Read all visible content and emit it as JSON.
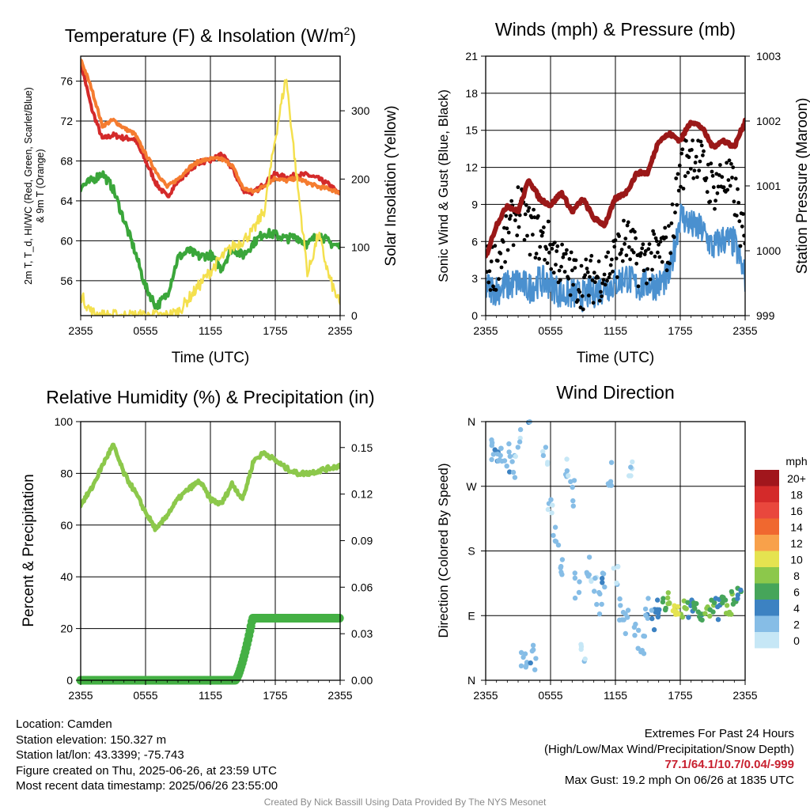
{
  "colors": {
    "red": "#d42a2a",
    "orange": "#f57c30",
    "green": "#3aa63a",
    "yellow": "#f4e04e",
    "maroon": "#9a1818",
    "blue": "#4a90cf",
    "black": "#000000",
    "lightgreen": "#8cc84b",
    "precipgreen": "#44b044",
    "extremes": "#c8202f"
  },
  "chart_data": [
    {
      "type": "line",
      "title": "Temperature (F) & Insolation (W/m²)",
      "xlabel": "Time (UTC)",
      "ylabel": "2m T, T_d, HI/WC (Red, Green, Scarlet/Blue) & 9m T (Orange)",
      "ylabel_right": "Solar Insolation (Yellow)",
      "x_ticks": [
        "2355",
        "0555",
        "1155",
        "1755",
        "2355"
      ],
      "y_ticks": [
        "56",
        "60",
        "64",
        "68",
        "72",
        "76"
      ],
      "y_right_ticks": [
        "0",
        "100",
        "200",
        "300"
      ],
      "ylim": [
        52.5,
        78.5
      ],
      "ylim_right": [
        0,
        380
      ],
      "x_hours": [
        0,
        1,
        2,
        3,
        4,
        5,
        6,
        7,
        8,
        9,
        10,
        11,
        12,
        13,
        14,
        15,
        16,
        17,
        18,
        19,
        20,
        21,
        22,
        23,
        24
      ],
      "series": [
        {
          "name": "2m T",
          "color": "red",
          "axis": "left",
          "width": 4,
          "values": [
            77.9,
            73.3,
            70.2,
            70.6,
            70.3,
            70.2,
            68.0,
            65.7,
            64.4,
            66.0,
            67.0,
            67.9,
            68.0,
            68.7,
            67.3,
            65.1,
            64.8,
            65.7,
            66.7,
            66.3,
            66.6,
            66.6,
            66.2,
            65.6,
            64.6
          ]
        },
        {
          "name": "9m T",
          "color": "orange",
          "axis": "left",
          "width": 4,
          "values": [
            78.2,
            75.3,
            71.5,
            72.1,
            71.3,
            70.7,
            68.7,
            66.9,
            65.4,
            66.2,
            67.3,
            68.0,
            68.2,
            68.2,
            67.6,
            65.3,
            64.9,
            65.5,
            66.3,
            66.0,
            66.3,
            65.8,
            65.4,
            65.2,
            64.8
          ]
        },
        {
          "name": "T_d",
          "color": "green",
          "axis": "left",
          "width": 4,
          "values": [
            65.4,
            66.0,
            66.8,
            65.2,
            62.1,
            59.0,
            55.4,
            53.4,
            54.6,
            58.3,
            59.0,
            58.4,
            58.6,
            57.2,
            59.3,
            58.5,
            59.8,
            60.8,
            60.6,
            60.2,
            60.4,
            59.6,
            60.7,
            59.8,
            59.4
          ]
        },
        {
          "name": "Solar Insolation",
          "color": "yellow",
          "axis": "right",
          "width": 2.5,
          "values": [
            30,
            5,
            0,
            0,
            0,
            0,
            0,
            0,
            0,
            5,
            25,
            45,
            65,
            85,
            100,
            110,
            125,
            155,
            260,
            350,
            200,
            60,
            120,
            55,
            15
          ]
        }
      ]
    },
    {
      "type": "scatter",
      "title": "Winds (mph) & Pressure (mb)",
      "xlabel": "Time (UTC)",
      "ylabel": "Sonic Wind & Gust (Blue, Black)",
      "ylabel_right": "Station Pressure (Maroon)",
      "x_ticks": [
        "2355",
        "0555",
        "1155",
        "1755",
        "2355"
      ],
      "y_ticks": [
        "0",
        "3",
        "6",
        "9",
        "12",
        "15",
        "18",
        "21"
      ],
      "y_right_ticks": [
        "999",
        "1000",
        "1001",
        "1002",
        "1003"
      ],
      "ylim": [
        0,
        21
      ],
      "ylim_right": [
        999,
        1003
      ],
      "x_hours": [
        0,
        1,
        2,
        3,
        4,
        5,
        6,
        7,
        8,
        9,
        10,
        11,
        12,
        13,
        14,
        15,
        16,
        17,
        18,
        19,
        20,
        21,
        22,
        23,
        24
      ],
      "series": [
        {
          "name": "Sonic Wind",
          "color": "blue",
          "axis": "left",
          "kind": "line",
          "values": [
            2.3,
            2.1,
            2.4,
            2.7,
            2.2,
            2.8,
            2.6,
            1.7,
            1.8,
            1.6,
            1.9,
            2.3,
            2.6,
            3.2,
            2.3,
            2.6,
            2.5,
            3.2,
            8.2,
            7.3,
            6.9,
            5.5,
            6.2,
            5.9,
            3.1
          ]
        },
        {
          "name": "Gust",
          "color": "black",
          "axis": "left",
          "kind": "points",
          "values": [
            3.6,
            4.2,
            6.2,
            8.8,
            7.0,
            6.3,
            5.5,
            4.1,
            3.2,
            2.6,
            3.0,
            3.5,
            4.8,
            6.2,
            4.4,
            4.6,
            5.0,
            5.6,
            11.8,
            13.5,
            12.1,
            10.4,
            11.1,
            10.1,
            5.3
          ]
        },
        {
          "name": "Station Pressure",
          "color": "maroon",
          "axis": "right",
          "kind": "line",
          "values": [
            999.9,
            1000.4,
            1000.7,
            1000.6,
            1001.1,
            1000.8,
            1000.7,
            1000.9,
            1000.6,
            1000.8,
            1000.5,
            1000.4,
            1000.8,
            1000.9,
            1001.2,
            1001.2,
            1001.7,
            1001.8,
            1001.7,
            1002.0,
            1001.9,
            1001.6,
            1001.7,
            1001.6,
            1002.0
          ]
        }
      ]
    },
    {
      "type": "line",
      "title": "Relative Humidity (%) & Precipitation (in)",
      "ylabel": "Percent & Precipitation",
      "x_ticks": [
        "2355",
        "0555",
        "1155",
        "1755",
        "2355"
      ],
      "y_ticks": [
        "0",
        "20",
        "40",
        "60",
        "80",
        "100"
      ],
      "y_right_ticks": [
        "0.00",
        "0.03",
        "0.06",
        "0.09",
        "0.12",
        "0.15"
      ],
      "ylim": [
        0,
        100
      ],
      "ylim_right": [
        0,
        0.1667
      ],
      "x_hours": [
        0,
        1,
        2,
        3,
        4,
        5,
        6,
        7,
        8,
        9,
        10,
        11,
        12,
        13,
        14,
        15,
        16,
        17,
        18,
        19,
        20,
        21,
        22,
        23,
        24
      ],
      "series": [
        {
          "name": "Relative Humidity",
          "color": "lightgreen",
          "axis": "left",
          "values": [
            68,
            74,
            83,
            91,
            80,
            73,
            65,
            58,
            64,
            70,
            74,
            77,
            70,
            68,
            76,
            70,
            85,
            88,
            85,
            82,
            80,
            80,
            81,
            82,
            83
          ]
        },
        {
          "name": "Precipitation",
          "color": "precipgreen",
          "axis": "right",
          "values": [
            0,
            0,
            0,
            0,
            0,
            0,
            0,
            0,
            0,
            0,
            0,
            0,
            0,
            0,
            0,
            0.005,
            0.04,
            0.04,
            0.04,
            0.04,
            0.04,
            0.04,
            0.04,
            0.04,
            0.04
          ]
        }
      ]
    },
    {
      "type": "scatter",
      "title": "Wind Direction",
      "ylabel": "Direction (Colored By Speed)",
      "x_ticks": [
        "2355",
        "0555",
        "1155",
        "1755",
        "2355"
      ],
      "y_ticks": [
        "N",
        "E",
        "S",
        "W",
        "N"
      ],
      "ylim": [
        0,
        360
      ],
      "legend": {
        "title": "mph",
        "labels": [
          "20+",
          "18",
          "16",
          "14",
          "12",
          "10",
          "8",
          "6",
          "4",
          "2",
          "0"
        ],
        "colors": [
          "#a1161c",
          "#d42a2a",
          "#e9473d",
          "#f0682f",
          "#f8a14a",
          "#e5e350",
          "#8cc84b",
          "#46a55a",
          "#3c82c2",
          "#86bde6",
          "#c6e7f6"
        ]
      },
      "points": [
        {
          "h": 0.5,
          "dir": 322,
          "spd": 2
        },
        {
          "h": 1.0,
          "dir": 318,
          "spd": 3
        },
        {
          "h": 1.5,
          "dir": 305,
          "spd": 2
        },
        {
          "h": 2.0,
          "dir": 310,
          "spd": 3
        },
        {
          "h": 2.5,
          "dir": 298,
          "spd": 2
        },
        {
          "h": 3.0,
          "dir": 330,
          "spd": 1
        },
        {
          "h": 3.5,
          "dir": 25,
          "spd": 2
        },
        {
          "h": 4.0,
          "dir": 18,
          "spd": 3
        },
        {
          "h": 4.5,
          "dir": 30,
          "spd": 2
        },
        {
          "h": 5.5,
          "dir": 305,
          "spd": 1
        },
        {
          "h": 6.0,
          "dir": 250,
          "spd": 1
        },
        {
          "h": 6.5,
          "dir": 200,
          "spd": 2
        },
        {
          "h": 7.0,
          "dir": 150,
          "spd": 2
        },
        {
          "h": 7.5,
          "dir": 300,
          "spd": 1
        },
        {
          "h": 8.0,
          "dir": 260,
          "spd": 2
        },
        {
          "h": 8.5,
          "dir": 130,
          "spd": 2
        },
        {
          "h": 9.0,
          "dir": 30,
          "spd": 1
        },
        {
          "h": 9.5,
          "dir": 160,
          "spd": 2
        },
        {
          "h": 10.0,
          "dir": 135,
          "spd": 1
        },
        {
          "h": 10.5,
          "dir": 110,
          "spd": 2
        },
        {
          "h": 11.0,
          "dir": 130,
          "spd": 3
        },
        {
          "h": 11.5,
          "dir": 290,
          "spd": 2
        },
        {
          "h": 12.0,
          "dir": 140,
          "spd": 1
        },
        {
          "h": 12.5,
          "dir": 95,
          "spd": 2
        },
        {
          "h": 13.0,
          "dir": 80,
          "spd": 2
        },
        {
          "h": 13.5,
          "dir": 300,
          "spd": 1
        },
        {
          "h": 14.0,
          "dir": 60,
          "spd": 2
        },
        {
          "h": 14.5,
          "dir": 45,
          "spd": 2
        },
        {
          "h": 15.0,
          "dir": 100,
          "spd": 3
        },
        {
          "h": 15.5,
          "dir": 85,
          "spd": 3
        },
        {
          "h": 16.0,
          "dir": 95,
          "spd": 4
        },
        {
          "h": 16.5,
          "dir": 105,
          "spd": 6
        },
        {
          "h": 17.0,
          "dir": 115,
          "spd": 8
        },
        {
          "h": 17.5,
          "dir": 100,
          "spd": 10
        },
        {
          "h": 18.0,
          "dir": 95,
          "spd": 9
        },
        {
          "h": 18.5,
          "dir": 102,
          "spd": 7
        },
        {
          "h": 19.0,
          "dir": 96,
          "spd": 4
        },
        {
          "h": 19.5,
          "dir": 100,
          "spd": 6
        },
        {
          "h": 20.0,
          "dir": 92,
          "spd": 5
        },
        {
          "h": 20.5,
          "dir": 98,
          "spd": 8
        },
        {
          "h": 21.0,
          "dir": 104,
          "spd": 7
        },
        {
          "h": 21.5,
          "dir": 95,
          "spd": 4
        },
        {
          "h": 22.0,
          "dir": 110,
          "spd": 6
        },
        {
          "h": 22.5,
          "dir": 100,
          "spd": 8
        },
        {
          "h": 23.0,
          "dir": 115,
          "spd": 7
        },
        {
          "h": 23.5,
          "dir": 120,
          "spd": 5
        }
      ]
    }
  ],
  "info_left": {
    "location": "Location: Camden",
    "elevation": "Station elevation: 150.327 m",
    "latlon": "Station lat/lon: 43.3399; -75.743",
    "created": "Figure created on Thu, 2025-06-26, at 23:59 UTC",
    "recent": "Most recent data timestamp: 2025/06/26 23:55:00"
  },
  "info_right": {
    "line1": "Extremes For Past 24 Hours",
    "line2": "(High/Low/Max Wind/Precipitation/Snow Depth)",
    "extremes": "77.1/64.1/10.7/0.04/-999",
    "gust": "Max Gust: 19.2 mph On 06/26 at 1835 UTC"
  },
  "credit": "Created By Nick Bassill Using Data Provided By The NYS Mesonet"
}
